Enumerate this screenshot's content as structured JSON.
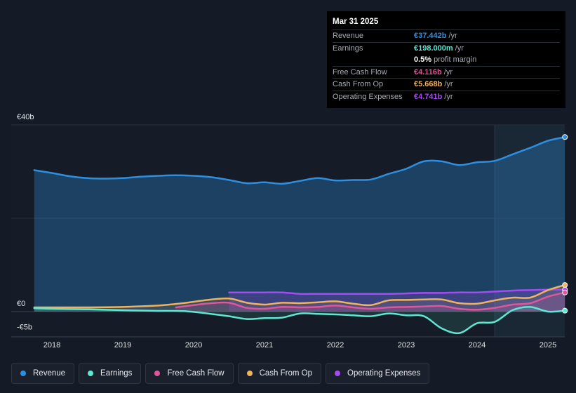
{
  "tooltip": {
    "date": "Mar 31 2025",
    "rows": [
      {
        "label": "Revenue",
        "value": "€37.442b",
        "unit": "/yr",
        "color": "#2e8fe0"
      },
      {
        "label": "Earnings",
        "value": "€198.000m",
        "unit": "/yr",
        "color": "#5ee7d1"
      },
      {
        "label": "",
        "value": "0.5%",
        "unit": "profit margin",
        "color": "#ffffff"
      },
      {
        "label": "Free Cash Flow",
        "value": "€4.116b",
        "unit": "/yr",
        "color": "#e0569a"
      },
      {
        "label": "Cash From Op",
        "value": "€5.668b",
        "unit": "/yr",
        "color": "#efb25e"
      },
      {
        "label": "Operating Expenses",
        "value": "€4.741b",
        "unit": "/yr",
        "color": "#a64bf4"
      }
    ]
  },
  "legend": [
    {
      "label": "Revenue",
      "color": "#2e8fe0"
    },
    {
      "label": "Earnings",
      "color": "#5ee7d1"
    },
    {
      "label": "Free Cash Flow",
      "color": "#e0569a"
    },
    {
      "label": "Cash From Op",
      "color": "#efb25e"
    },
    {
      "label": "Operating Expenses",
      "color": "#a64bf4"
    }
  ],
  "chart_data": {
    "type": "area",
    "title": "",
    "xlabel": "",
    "ylabel": "",
    "y_tick_labels": [
      "€40b",
      "€0",
      "-€5b"
    ],
    "x_tick_labels": [
      "2018",
      "2019",
      "2020",
      "2021",
      "2022",
      "2023",
      "2024",
      "2025"
    ],
    "ylim": [
      -5,
      40
    ],
    "xlim": [
      2017.3,
      2025.3
    ],
    "grid": true,
    "legend_position": "bottom",
    "highlight_start": 2024.25,
    "series": [
      {
        "name": "Revenue",
        "color": "#2e8fe0",
        "x": [
          2017.75,
          2018.0,
          2018.25,
          2018.5,
          2018.75,
          2019.0,
          2019.25,
          2019.5,
          2019.75,
          2020.0,
          2020.25,
          2020.5,
          2020.75,
          2021.0,
          2021.25,
          2021.5,
          2021.75,
          2022.0,
          2022.25,
          2022.5,
          2022.75,
          2023.0,
          2023.25,
          2023.5,
          2023.75,
          2024.0,
          2024.25,
          2024.5,
          2024.75,
          2025.0,
          2025.24
        ],
        "y": [
          30.3,
          29.7,
          29.0,
          28.6,
          28.5,
          28.6,
          28.9,
          29.1,
          29.2,
          29.1,
          28.8,
          28.2,
          27.5,
          27.7,
          27.4,
          28.0,
          28.6,
          28.1,
          28.2,
          28.3,
          29.5,
          30.6,
          32.2,
          32.2,
          31.4,
          32.0,
          32.3,
          33.7,
          35.1,
          36.6,
          37.4
        ]
      },
      {
        "name": "Earnings",
        "color": "#5ee7d1",
        "x": [
          2017.75,
          2018.0,
          2018.5,
          2019.0,
          2019.5,
          2019.85,
          2020.2,
          2020.5,
          2020.75,
          2021.0,
          2021.25,
          2021.5,
          2021.75,
          2022.0,
          2022.25,
          2022.5,
          2022.75,
          2023.0,
          2023.25,
          2023.5,
          2023.75,
          2024.0,
          2024.25,
          2024.5,
          2024.75,
          2025.0,
          2025.24
        ],
        "y": [
          0.7,
          0.6,
          0.5,
          0.3,
          0.15,
          0.1,
          -0.4,
          -1.0,
          -1.6,
          -1.4,
          -1.3,
          -0.4,
          -0.5,
          -0.6,
          -0.8,
          -1.0,
          -0.4,
          -0.8,
          -1.0,
          -3.6,
          -4.6,
          -2.5,
          -2.2,
          0.3,
          1.0,
          0.0,
          0.2
        ]
      },
      {
        "name": "Free Cash Flow",
        "color": "#e0569a",
        "x": [
          2019.75,
          2020.0,
          2020.25,
          2020.5,
          2020.75,
          2021.0,
          2021.25,
          2021.5,
          2021.75,
          2022.0,
          2022.25,
          2022.5,
          2022.75,
          2023.0,
          2023.25,
          2023.5,
          2023.75,
          2024.0,
          2024.25,
          2024.5,
          2024.75,
          2025.0,
          2025.24
        ],
        "y": [
          0.9,
          1.4,
          1.8,
          1.9,
          0.8,
          0.6,
          1.0,
          0.9,
          1.0,
          1.3,
          0.9,
          0.6,
          0.9,
          1.0,
          1.1,
          1.2,
          0.6,
          0.4,
          0.8,
          1.5,
          1.8,
          3.2,
          4.1
        ]
      },
      {
        "name": "Cash From Op",
        "color": "#efb25e",
        "x": [
          2017.75,
          2018.0,
          2018.5,
          2019.0,
          2019.5,
          2019.85,
          2020.2,
          2020.5,
          2020.75,
          2021.0,
          2021.25,
          2021.5,
          2021.75,
          2022.0,
          2022.25,
          2022.5,
          2022.75,
          2023.0,
          2023.25,
          2023.5,
          2023.75,
          2024.0,
          2024.25,
          2024.5,
          2024.75,
          2025.0,
          2025.24
        ],
        "y": [
          0.9,
          0.9,
          0.9,
          1.0,
          1.3,
          1.8,
          2.5,
          2.8,
          1.9,
          1.5,
          1.9,
          1.8,
          2.0,
          2.2,
          1.7,
          1.4,
          2.4,
          2.5,
          2.6,
          2.6,
          1.8,
          1.7,
          2.4,
          3.0,
          3.0,
          4.6,
          5.7
        ]
      },
      {
        "name": "Operating Expenses",
        "color": "#a64bf4",
        "x": [
          2020.5,
          2020.75,
          2021.0,
          2021.25,
          2021.5,
          2021.75,
          2022.0,
          2022.25,
          2022.5,
          2022.75,
          2023.0,
          2023.25,
          2023.5,
          2023.75,
          2024.0,
          2024.25,
          2024.5,
          2024.75,
          2025.0,
          2025.24
        ],
        "y": [
          4.1,
          4.1,
          4.1,
          4.1,
          3.8,
          3.8,
          3.8,
          3.8,
          3.8,
          3.8,
          3.9,
          4.0,
          4.0,
          4.1,
          4.1,
          4.3,
          4.5,
          4.6,
          4.7,
          4.7
        ]
      }
    ]
  }
}
